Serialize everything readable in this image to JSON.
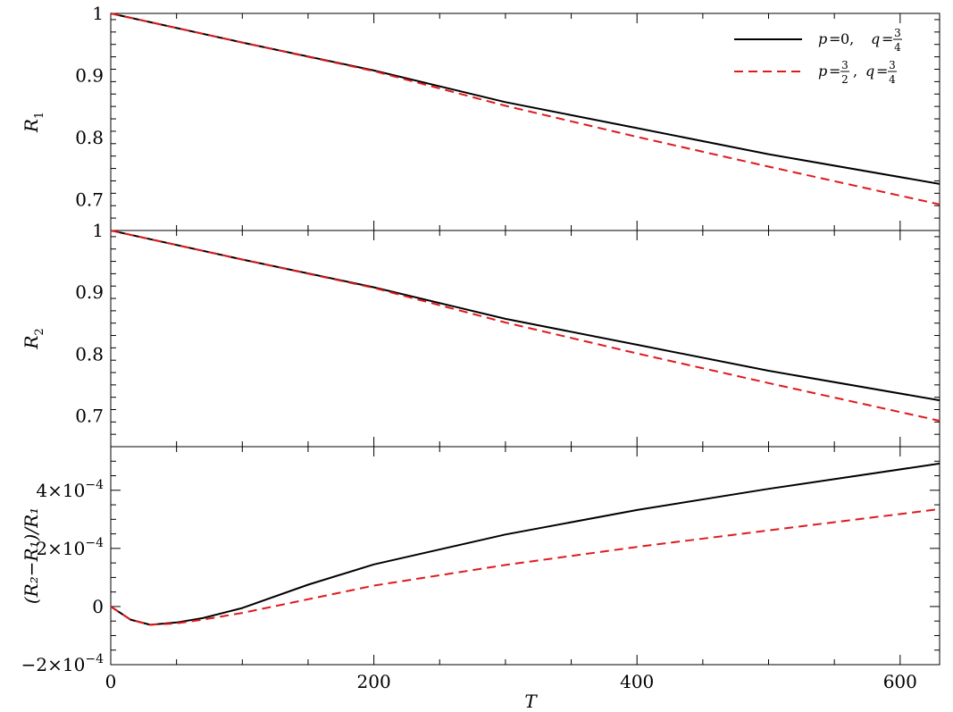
{
  "chart_data": {
    "type": "line",
    "xlabel": "T",
    "xlim": [
      0,
      630
    ],
    "xticks": [
      0,
      200,
      400,
      600
    ],
    "xtick_labels": [
      "0",
      "200",
      "400",
      "600"
    ],
    "legend": {
      "placement": "top-right",
      "entries": [
        {
          "series_key": "p0",
          "p_label": "p",
          "p_value": "0",
          "q_label": "q",
          "q_num": "3",
          "q_den": "4",
          "style": "solid",
          "color": "#000000"
        },
        {
          "series_key": "p32",
          "p_label": "p",
          "p_num": "3",
          "p_den": "2",
          "q_label": "q",
          "q_num": "3",
          "q_den": "4",
          "style": "dashed",
          "color": "#e0191c"
        }
      ]
    },
    "panels": [
      {
        "key": "r1",
        "ylabel_main": "R",
        "ylabel_sub": "1",
        "ylim": [
          0.65,
          1.0
        ],
        "yticks": [
          0.7,
          0.8,
          0.9,
          1.0
        ],
        "ytick_labels": [
          "0.7",
          "0.8",
          "0.9",
          "1"
        ],
        "series": [
          {
            "key": "p0",
            "x": [
              0,
              100,
              200,
              300,
              400,
              500,
              630
            ],
            "y": [
              1.0,
              0.953,
              0.908,
              0.857,
              0.815,
              0.773,
              0.725
            ]
          },
          {
            "key": "p32",
            "x": [
              0,
              100,
              200,
              300,
              400,
              500,
              630
            ],
            "y": [
              1.0,
              0.953,
              0.907,
              0.851,
              0.801,
              0.753,
              0.692
            ]
          }
        ]
      },
      {
        "key": "r2",
        "ylabel_main": "R",
        "ylabel_sub": "2",
        "ylim": [
          0.65,
          1.0
        ],
        "yticks": [
          0.7,
          0.8,
          0.9,
          1.0
        ],
        "ytick_labels": [
          "0.7",
          "0.8",
          "0.9",
          "1"
        ],
        "series": [
          {
            "key": "p0",
            "x": [
              0,
              100,
              200,
              300,
              400,
              500,
              630
            ],
            "y": [
              1.0,
              0.953,
              0.908,
              0.857,
              0.815,
              0.773,
              0.725
            ]
          },
          {
            "key": "p32",
            "x": [
              0,
              100,
              200,
              300,
              400,
              500,
              630
            ],
            "y": [
              1.0,
              0.953,
              0.907,
              0.851,
              0.801,
              0.753,
              0.692
            ]
          }
        ]
      },
      {
        "key": "diff",
        "ylabel_text": "(R₂−R₁)/R₁",
        "ylim": [
          -0.0002,
          0.00055
        ],
        "yticks": [
          -0.0002,
          0,
          0.0002,
          0.0004
        ],
        "ytick_labels": [
          {
            "mant": "−2×10",
            "exp": "−4"
          },
          {
            "mant": "0",
            "exp": ""
          },
          {
            "mant": "2×10",
            "exp": "−4"
          },
          {
            "mant": "4×10",
            "exp": "−4"
          }
        ],
        "series": [
          {
            "key": "p0",
            "x": [
              0,
              15,
              30,
              50,
              70,
              100,
              150,
              200,
              300,
              400,
              500,
              630
            ],
            "y": [
              0,
              -4.5e-05,
              -6.3e-05,
              -5.5e-05,
              -4e-05,
              -5e-06,
              7.5e-05,
              0.000145,
              0.000248,
              0.000332,
              0.000405,
              0.000492
            ]
          },
          {
            "key": "p32",
            "x": [
              0,
              15,
              30,
              50,
              70,
              100,
              150,
              200,
              300,
              400,
              500,
              630
            ],
            "y": [
              0,
              -4.5e-05,
              -6.3e-05,
              -5.8e-05,
              -4.5e-05,
              -2.2e-05,
              2.5e-05,
              7.2e-05,
              0.000143,
              0.000205,
              0.000262,
              0.000335
            ]
          }
        ]
      }
    ]
  }
}
